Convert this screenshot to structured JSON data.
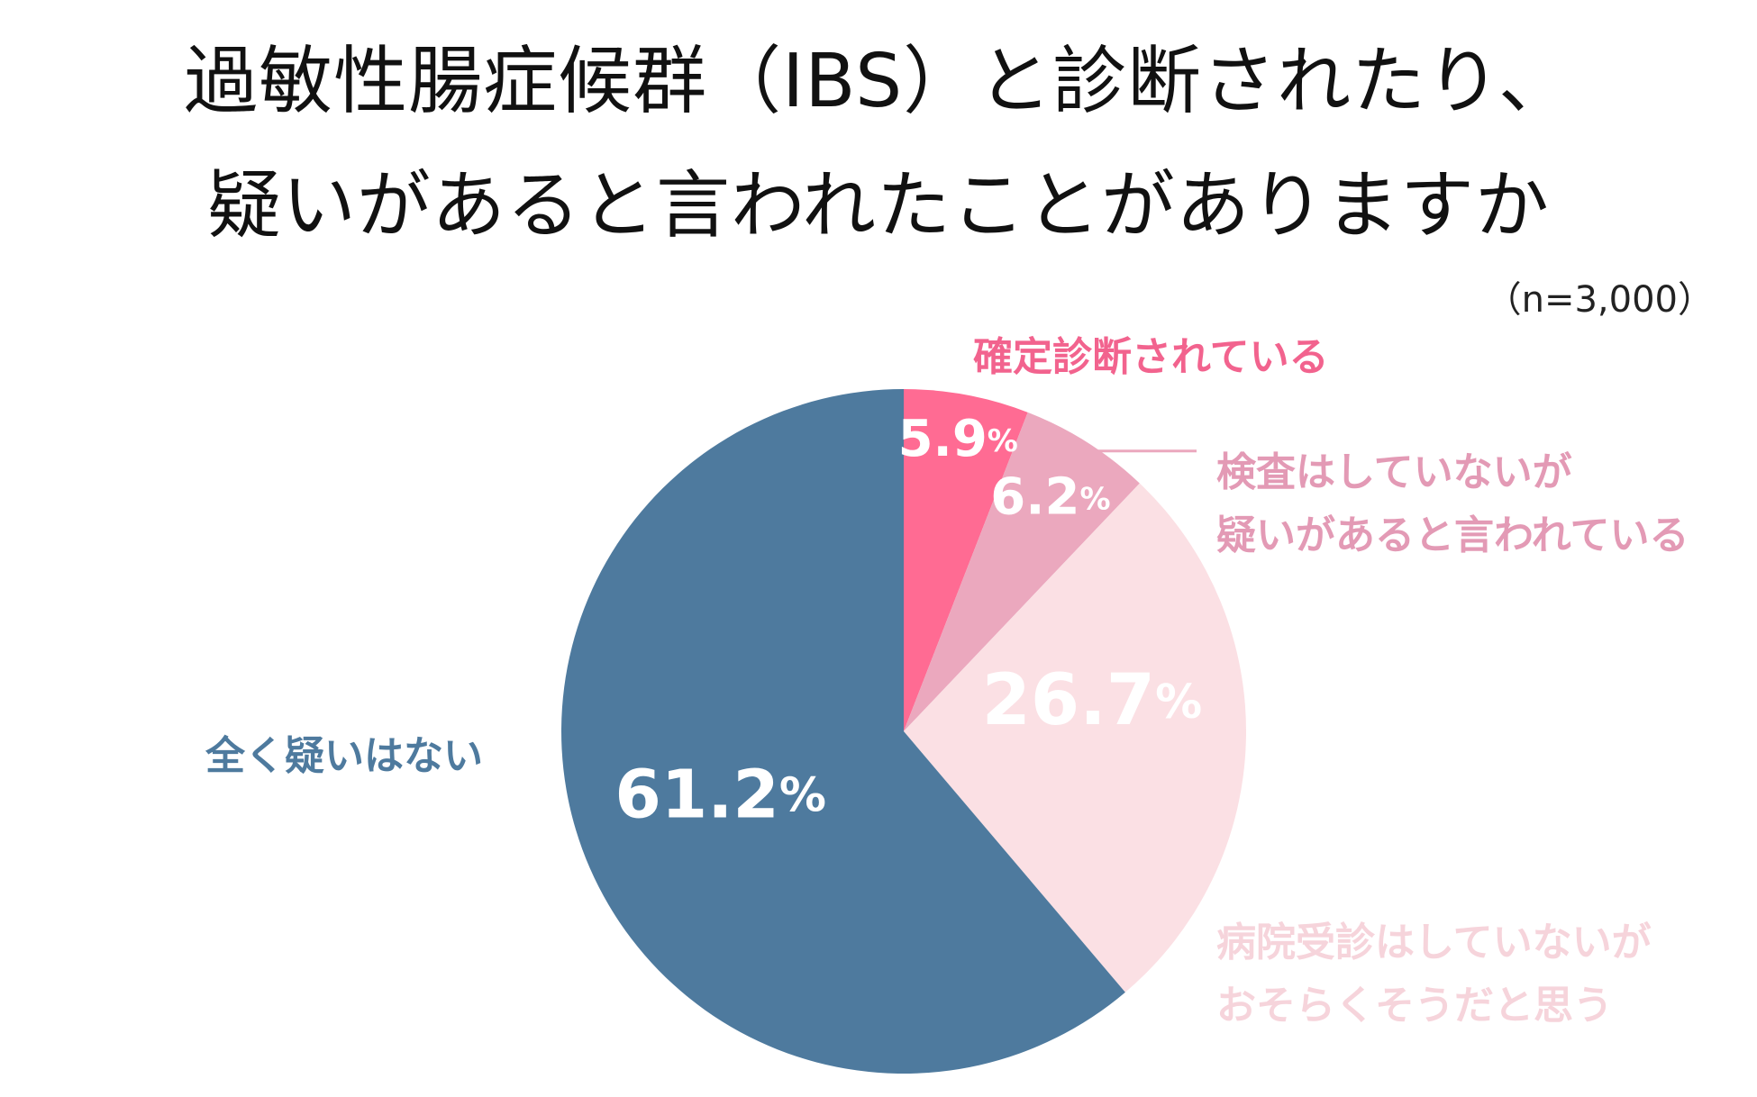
{
  "title_line1": "過敏性腸症候群（IBS）と診断されたり、",
  "title_line2": "疑いがあると言われたことがありますか",
  "sample_size": "（n=3,000）",
  "chart_data": {
    "type": "pie",
    "title": "過敏性腸症候群（IBS）と診断されたり、疑いがあると言われたことがありますか",
    "percent_sign": "%",
    "slices": [
      {
        "label": [
          "確定診断されている"
        ],
        "value": 5.9,
        "value_text": "5.9",
        "color": "#FF6B93",
        "label_color": "#F2638E"
      },
      {
        "label": [
          "検査はしていないが",
          "疑いがあると言われている"
        ],
        "value": 6.2,
        "value_text": "6.2",
        "color": "#EBA8BE",
        "label_color": "#E39AB5"
      },
      {
        "label": [
          "病院受診はしていないが",
          "おそらくそうだと思う"
        ],
        "value": 26.7,
        "value_text": "26.7",
        "color": "#FBE0E4",
        "label_color": "#F6D4DB"
      },
      {
        "label": [
          "全く疑いはない"
        ],
        "value": 61.2,
        "value_text": "61.2",
        "color": "#4E7A9E",
        "label_color": "#4E7A9E"
      }
    ]
  }
}
